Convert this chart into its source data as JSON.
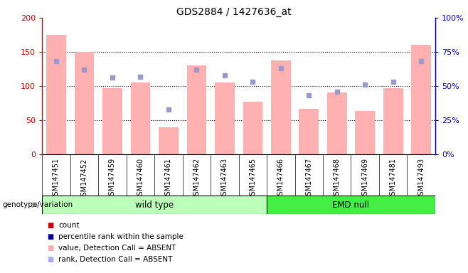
{
  "title": "GDS2884 / 1427636_at",
  "samples": [
    "GSM147451",
    "GSM147452",
    "GSM147459",
    "GSM147460",
    "GSM147461",
    "GSM147462",
    "GSM147463",
    "GSM147465",
    "GSM147466",
    "GSM147467",
    "GSM147468",
    "GSM147469",
    "GSM147481",
    "GSM147493"
  ],
  "wild_type_count": 8,
  "emd_null_count": 6,
  "absent_value": [
    175,
    150,
    97,
    105,
    40,
    130,
    105,
    77,
    137,
    67,
    91,
    64,
    97,
    160
  ],
  "absent_rank": [
    68,
    62,
    56,
    57,
    33,
    62,
    58,
    53,
    63,
    43,
    46,
    51,
    53,
    68
  ],
  "bar_color_absent": "#ffb0b0",
  "marker_color_absent": "#9999cc",
  "left_axis_color": "#cc0000",
  "right_axis_color": "#0000cc",
  "ylim_left": [
    0,
    200
  ],
  "ylim_right": [
    0,
    100
  ],
  "yticks_left": [
    0,
    50,
    100,
    150,
    200
  ],
  "yticks_right": [
    0,
    25,
    50,
    75,
    100
  ],
  "ytick_labels_left": [
    "0",
    "50",
    "100",
    "150",
    "200"
  ],
  "ytick_labels_right": [
    "0%",
    "25%",
    "50%",
    "75%",
    "100%"
  ],
  "group_label_text": "genotype/variation",
  "group1_label": "wild type",
  "group2_label": "EMD null",
  "group1_color": "#bbffbb",
  "group2_color": "#44ee44",
  "legend_items": [
    "count",
    "percentile rank within the sample",
    "value, Detection Call = ABSENT",
    "rank, Detection Call = ABSENT"
  ],
  "legend_colors": [
    "#cc0000",
    "#000099",
    "#ffaaaa",
    "#aaaaee"
  ],
  "bg_color": "#ffffff",
  "bar_width": 0.7
}
